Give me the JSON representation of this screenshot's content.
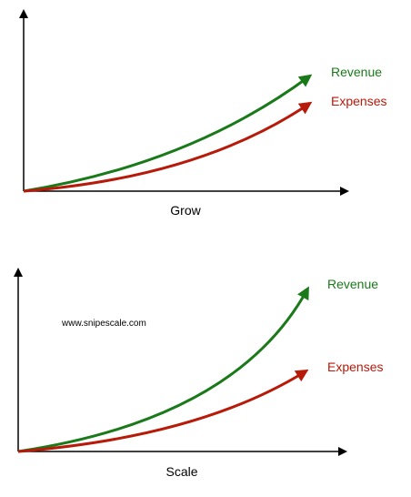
{
  "colors": {
    "axis": "#000000",
    "revenue": "#1a7a1a",
    "expenses": "#b81a0a",
    "text": "#000000"
  },
  "watermark": "www.snipescale.com",
  "panels": [
    {
      "id": "grow",
      "xlabel": "Grow",
      "series": [
        {
          "key": "revenue",
          "label": "Revenue"
        },
        {
          "key": "expenses",
          "label": "Expenses"
        }
      ]
    },
    {
      "id": "scale",
      "xlabel": "Scale",
      "series": [
        {
          "key": "revenue",
          "label": "Revenue"
        },
        {
          "key": "expenses",
          "label": "Expenses"
        }
      ]
    }
  ]
}
